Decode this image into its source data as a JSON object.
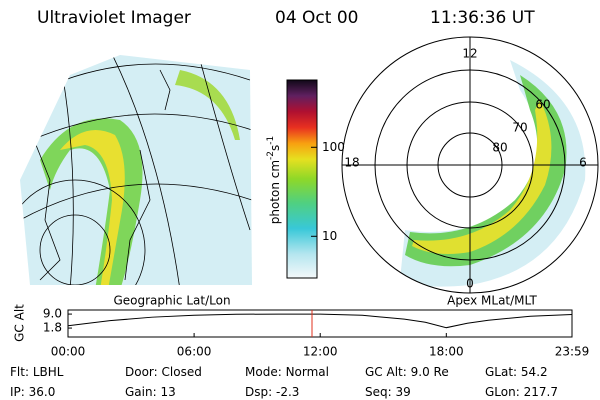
{
  "header": {
    "title": "Ultraviolet Imager",
    "date": "04 Oct 00",
    "time": "11:36:36 UT"
  },
  "geographic_map": {
    "label": "Geographic Lat/Lon"
  },
  "colorbar": {
    "label_parts": [
      "photon cm",
      "-2",
      "s",
      "-1"
    ],
    "log_scale": true,
    "lim": [
      3.4,
      570
    ],
    "ticks": [
      10,
      100
    ]
  },
  "polar_plot": {
    "label": "Apex MLat/MLT",
    "mlt_labels": [
      "12",
      "18",
      "6",
      "0"
    ],
    "lat_labels": [
      "60",
      "70",
      "80"
    ]
  },
  "altitude_plot": {
    "type": "line",
    "y_label": "GC Alt",
    "color": "#000000",
    "ylim": [
      -2.8,
      11.1
    ],
    "yticks": [
      1.8,
      {
        "value": 9,
        "label": "9.0"
      }
    ],
    "xlim": [
      0,
      23.98
    ],
    "xticks": [
      {
        "value": 0,
        "label": "00:00"
      },
      {
        "value": 6,
        "label": "06:00"
      },
      {
        "value": 12,
        "label": "12:00"
      },
      {
        "value": 18,
        "label": "18:00"
      },
      {
        "value": 23.98,
        "label": "23:59"
      }
    ],
    "x": [
      0,
      2,
      4,
      6,
      8,
      10,
      12,
      14,
      16,
      17,
      18,
      19,
      20,
      22,
      23.98
    ],
    "values": [
      3.0,
      5.6,
      7.4,
      8.4,
      8.9,
      9.0,
      9.0,
      8.4,
      6.4,
      4.8,
      2.0,
      4.3,
      5.8,
      7.9,
      8.8
    ],
    "current_time": 11.61,
    "marker_color": "#e0301e"
  },
  "status": [
    [
      {
        "label": "Flt:",
        "value": "LBHL"
      },
      {
        "label": "Door:",
        "value": "Closed"
      },
      {
        "label": "Mode:",
        "value": "Normal"
      },
      {
        "label": "GC Alt:",
        "value": "9.0 Re"
      },
      {
        "label": "GLat:",
        "value": "54.2"
      }
    ],
    [
      {
        "label": "IP:",
        "value": "36.0"
      },
      {
        "label": "Gain:",
        "value": "13"
      },
      {
        "label": "Dsp:",
        "value": "-2.3"
      },
      {
        "label": "Seq:",
        "value": "39"
      },
      {
        "label": "GLon:",
        "value": "217.7"
      }
    ]
  ]
}
